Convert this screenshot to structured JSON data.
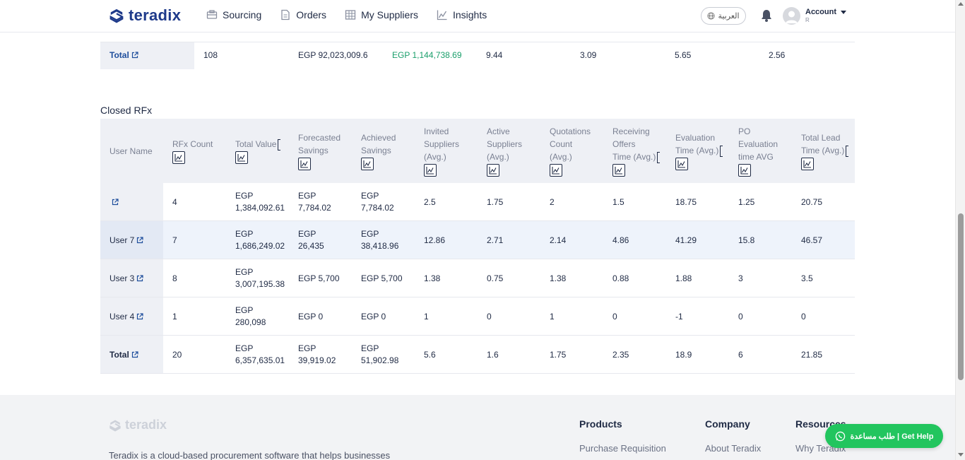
{
  "header": {
    "logo_text": "teradix",
    "nav": [
      {
        "label": "Sourcing",
        "icon": "sourcing-icon"
      },
      {
        "label": "Orders",
        "icon": "document-icon"
      },
      {
        "label": "My Suppliers",
        "icon": "suppliers-icon"
      },
      {
        "label": "Insights",
        "icon": "chart-icon"
      }
    ],
    "language_label": "العربية",
    "account_label": "Account",
    "account_sub": "R"
  },
  "top_total": {
    "name": "Total",
    "rfx_count": "108",
    "total_value": "EGP 92,023,009.6",
    "achieved_savings": "EGP 1,144,738.69",
    "col5": "9.44",
    "col6": "3.09",
    "col7": "5.65",
    "col8": "2.56"
  },
  "closed_rfx": {
    "title": "Closed RFx",
    "columns": [
      {
        "lines": [
          "User Name"
        ],
        "chart": false
      },
      {
        "lines": [
          "RFx Count"
        ],
        "chart": true
      },
      {
        "lines": [
          "Total Value"
        ],
        "chart": true,
        "bracket": true
      },
      {
        "lines": [
          "Forecasted",
          "Savings"
        ],
        "chart": true
      },
      {
        "lines": [
          "Achieved",
          "Savings"
        ],
        "chart": true
      },
      {
        "lines": [
          "Invited",
          "Suppliers",
          "(Avg.)"
        ],
        "chart": true
      },
      {
        "lines": [
          "Active",
          "Suppliers",
          "(Avg.)"
        ],
        "chart": true
      },
      {
        "lines": [
          "Quotations",
          "Count",
          "(Avg.)"
        ],
        "chart": true
      },
      {
        "lines": [
          "Receiving",
          "Offers",
          "Time (Avg.)"
        ],
        "chart": true,
        "bracket": true
      },
      {
        "lines": [
          "Evaluation",
          "Time (Avg.)"
        ],
        "chart": true,
        "bracket": true
      },
      {
        "lines": [
          "PO",
          "Evaluation",
          "time AVG"
        ],
        "chart": true
      },
      {
        "lines": [
          "Total Lead",
          "Time (Avg.)"
        ],
        "chart": true,
        "bracket": true
      }
    ],
    "rows": [
      {
        "name": "",
        "rfx_count": "4",
        "total_value": [
          "EGP",
          "1,384,092.61"
        ],
        "forecasted": [
          "EGP",
          "7,784.02"
        ],
        "achieved": [
          "EGP",
          "7,784.02"
        ],
        "invited": "2.5",
        "active": "1.75",
        "quotations": "2",
        "receiving": "1.5",
        "evaluation": "18.75",
        "po_eval": "1.25",
        "lead": "20.75"
      },
      {
        "name": "User 7",
        "rfx_count": "7",
        "total_value": [
          "EGP",
          "1,686,249.02"
        ],
        "forecasted": [
          "EGP",
          "26,435"
        ],
        "achieved": [
          "EGP",
          "38,418.96"
        ],
        "invited": "12.86",
        "active": "2.71",
        "quotations": "2.14",
        "receiving": "4.86",
        "evaluation": "41.29",
        "po_eval": "15.8",
        "lead": "46.57"
      },
      {
        "name": "User 3",
        "rfx_count": "8",
        "total_value": [
          "EGP",
          "3,007,195.38"
        ],
        "forecasted": [
          "EGP 5,700"
        ],
        "achieved": [
          "EGP 5,700"
        ],
        "invited": "1.38",
        "active": "0.75",
        "quotations": "1.38",
        "receiving": "0.88",
        "evaluation": "1.88",
        "po_eval": "3",
        "lead": "3.5"
      },
      {
        "name": "User 4",
        "rfx_count": "1",
        "total_value": [
          "EGP",
          "280,098"
        ],
        "forecasted": [
          "EGP 0"
        ],
        "achieved": [
          "EGP 0"
        ],
        "invited": "1",
        "active": "0",
        "quotations": "1",
        "receiving": "0",
        "evaluation": "-1",
        "po_eval": "0",
        "lead": "0"
      },
      {
        "name": "Total",
        "rfx_count": "20",
        "total_value": [
          "EGP",
          "6,357,635.01"
        ],
        "forecasted": [
          "EGP",
          "39,919.02"
        ],
        "achieved": [
          "EGP",
          "51,902.98"
        ],
        "invited": "5.6",
        "active": "1.6",
        "quotations": "1.75",
        "receiving": "2.35",
        "evaluation": "18.9",
        "po_eval": "6",
        "lead": "21.85"
      }
    ]
  },
  "footer": {
    "logo_text": "teradix",
    "description": "Teradix is a cloud-based procurement software that helps businesses",
    "columns": [
      {
        "heading": "Products",
        "link": "Purchase Requisition"
      },
      {
        "heading": "Company",
        "link": "About Teradix"
      },
      {
        "heading": "Resources",
        "link": "Why Teradix"
      }
    ]
  },
  "help_button_label": "طلب مساعدة | Get Help",
  "colors": {
    "brand": "#1e3a8a",
    "savings_green": "#1a9f6b",
    "help_green": "#22c55e",
    "link_blue": "#1e4e9c"
  }
}
